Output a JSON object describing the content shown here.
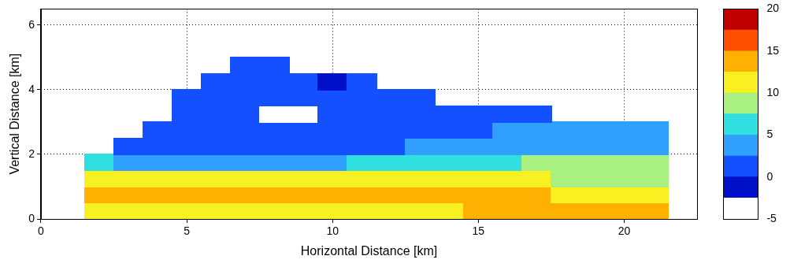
{
  "chart_data": {
    "type": "heatmap",
    "x_label": "Horizontal Distance [km]",
    "y_label": "Vertical Distance [km]",
    "xlim": [
      0,
      22.5
    ],
    "ylim": [
      0,
      6.5
    ],
    "xticks": [
      0,
      5,
      10,
      15,
      20
    ],
    "yticks": [
      0,
      2,
      4,
      6
    ],
    "grid": true,
    "x_edges": [
      1.5,
      2.5,
      3.5,
      4.5,
      5.5,
      6.5,
      7.5,
      8.5,
      9.5,
      10.5,
      11.5,
      12.5,
      13.5,
      14.5,
      15.5,
      16.5,
      17.5,
      18.5,
      19.5,
      20.5,
      21.5
    ],
    "y_edges": [
      0,
      0.5,
      1,
      1.5,
      2,
      2.5,
      3,
      3.5,
      4,
      4.5,
      5
    ],
    "cells": [
      [
        12,
        12,
        12,
        11.5,
        12,
        12,
        11.5,
        12,
        11.5,
        11.5,
        12,
        12,
        12,
        12.5,
        12.5,
        13,
        13.5,
        13.5,
        13.5,
        13
      ],
      [
        13,
        13.5,
        13.5,
        13.5,
        13.5,
        13.5,
        13.5,
        13.5,
        13,
        13,
        13,
        13,
        13,
        12.5,
        12.5,
        12.5,
        12,
        12,
        11.5,
        11.5
      ],
      [
        10,
        10.5,
        10.5,
        10.5,
        10,
        10,
        10,
        10,
        10,
        10,
        10,
        10,
        10,
        10,
        10,
        10,
        9.5,
        9.5,
        9,
        9
      ],
      [
        5,
        4.5,
        4,
        4,
        4,
        4,
        4,
        4.5,
        4.5,
        5,
        5,
        5.5,
        6,
        6.5,
        7,
        7.5,
        7.5,
        7.5,
        7.5,
        7.5
      ],
      [
        null,
        2,
        1.5,
        1.5,
        1.5,
        1.5,
        1.5,
        1.5,
        1.5,
        2,
        2,
        2.5,
        2.5,
        3,
        3.5,
        4,
        4.5,
        4.5,
        4.5,
        4.5
      ],
      [
        null,
        null,
        1,
        1,
        0.5,
        1,
        1,
        1,
        1,
        1.5,
        1.5,
        1.5,
        2,
        2,
        2.5,
        2.5,
        2.5,
        2.5,
        3,
        2.5
      ],
      [
        null,
        null,
        null,
        0.5,
        0.5,
        0.5,
        -3,
        -3,
        0,
        0.5,
        1,
        1,
        1,
        1.5,
        1.5,
        1.5,
        null,
        null,
        null,
        null
      ],
      [
        null,
        null,
        null,
        0,
        0,
        0,
        0,
        0,
        0,
        0,
        0.5,
        1,
        null,
        null,
        null,
        null,
        null,
        null,
        null,
        null
      ],
      [
        null,
        null,
        null,
        null,
        0,
        0,
        0.5,
        0,
        -1,
        0,
        null,
        null,
        null,
        null,
        null,
        null,
        null,
        null,
        null,
        null
      ],
      [
        null,
        null,
        null,
        null,
        null,
        0.5,
        0.5,
        null,
        null,
        null,
        null,
        null,
        null,
        null,
        null,
        null,
        null,
        null,
        null,
        null
      ]
    ],
    "colorbar": {
      "range": [
        -5,
        20
      ],
      "ticks": [
        -5,
        0,
        5,
        10,
        15,
        20
      ],
      "colors": [
        "#ffffff",
        "#0010c8",
        "#1450ff",
        "#30a0ff",
        "#30e0e0",
        "#a8f080",
        "#f8f020",
        "#ffb000",
        "#ff5000",
        "#c00000"
      ]
    }
  }
}
